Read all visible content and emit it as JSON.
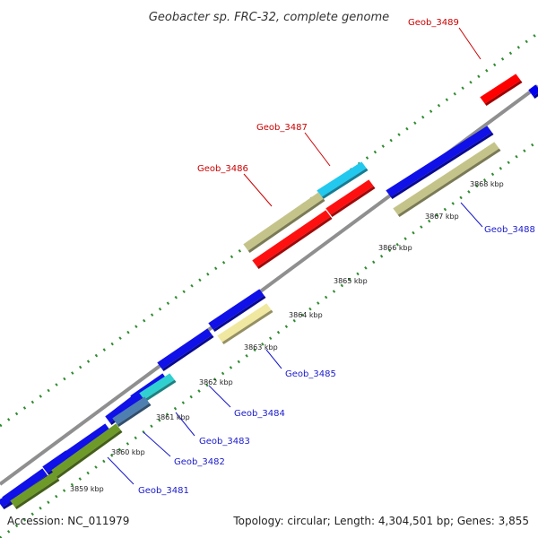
{
  "title": "Geobacter sp. FRC-32, complete genome",
  "accession": "Accession: NC_011979",
  "summary": "Topology: circular; Length: 4,304,501 bp; Genes: 3,855",
  "colors": {
    "backbone": "#8a8a8a",
    "ticks": "#2e8b2e",
    "label_red": "#cc0000",
    "label_blue": "#1a1acc"
  },
  "scale_labels": [
    "3859 kbp",
    "3860 kbp",
    "3861 kbp",
    "3862 kbp",
    "3863 kbp",
    "3864 kbp",
    "3865 kbp",
    "3866 kbp",
    "3867 kbp",
    "3868 kbp"
  ],
  "gene_labels": [
    {
      "text": "Geob_3489",
      "color": "red"
    },
    {
      "text": "Geob_3487",
      "color": "red"
    },
    {
      "text": "Geob_3486",
      "color": "red"
    },
    {
      "text": "Geob_3488",
      "color": "blue"
    },
    {
      "text": "Geob_3485",
      "color": "blue"
    },
    {
      "text": "Geob_3484",
      "color": "blue"
    },
    {
      "text": "Geob_3483",
      "color": "blue"
    },
    {
      "text": "Geob_3482",
      "color": "blue"
    },
    {
      "text": "Geob_3481",
      "color": "blue"
    }
  ]
}
